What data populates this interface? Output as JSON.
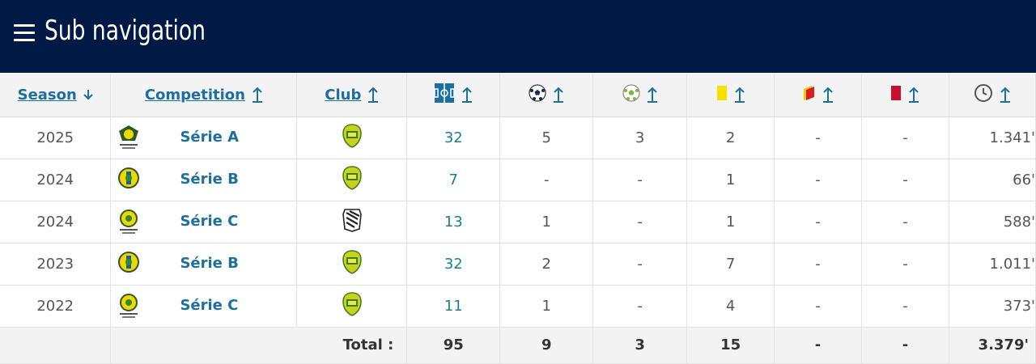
{
  "header": {
    "title": "Sub navigation",
    "background": "#001a45"
  },
  "table": {
    "columns": {
      "season": "Season",
      "competition": "Competition",
      "club": "Club",
      "appearances_icon": "pitch-icon",
      "goals_icon": "ball-icon",
      "assists_icon": "assist-ball-icon",
      "yellow_icon": "yellow-card-icon",
      "second_yellow_icon": "yellow-red-card-icon",
      "red_icon": "red-card-icon",
      "minutes_icon": "clock-icon"
    },
    "rows": [
      {
        "season": "2025",
        "competition": "Série A",
        "comp_logo": "brasileirao-logo",
        "club_logo": "mirassol-crest",
        "apps": "32",
        "goals": "5",
        "assists": "3",
        "yellow": "2",
        "yellow_red": "-",
        "red": "-",
        "minutes": "1.341'"
      },
      {
        "season": "2024",
        "competition": "Série B",
        "comp_logo": "serie-b-logo",
        "club_logo": "mirassol-crest",
        "apps": "7",
        "goals": "-",
        "assists": "-",
        "yellow": "1",
        "yellow_red": "-",
        "red": "-",
        "minutes": "66'"
      },
      {
        "season": "2024",
        "competition": "Série C",
        "comp_logo": "serie-c-logo",
        "club_logo": "figueirense-crest",
        "apps": "13",
        "goals": "1",
        "assists": "-",
        "yellow": "1",
        "yellow_red": "-",
        "red": "-",
        "minutes": "588'"
      },
      {
        "season": "2023",
        "competition": "Série B",
        "comp_logo": "serie-b-logo",
        "club_logo": "mirassol-crest",
        "apps": "32",
        "goals": "2",
        "assists": "-",
        "yellow": "7",
        "yellow_red": "-",
        "red": "-",
        "minutes": "1.011'"
      },
      {
        "season": "2022",
        "competition": "Série C",
        "comp_logo": "serie-c-logo",
        "club_logo": "mirassol-crest",
        "apps": "11",
        "goals": "1",
        "assists": "-",
        "yellow": "4",
        "yellow_red": "-",
        "red": "-",
        "minutes": "373'"
      }
    ],
    "totals": {
      "label": "Total :",
      "apps": "95",
      "goals": "9",
      "assists": "3",
      "yellow": "15",
      "yellow_red": "-",
      "red": "-",
      "minutes": "3.379'"
    }
  },
  "colors": {
    "link": "#1c6f9e",
    "apps": "#1c7f8e",
    "yellow_card": "#f5e100",
    "red_card": "#c8102e",
    "mirassol": "#c9d21a"
  }
}
